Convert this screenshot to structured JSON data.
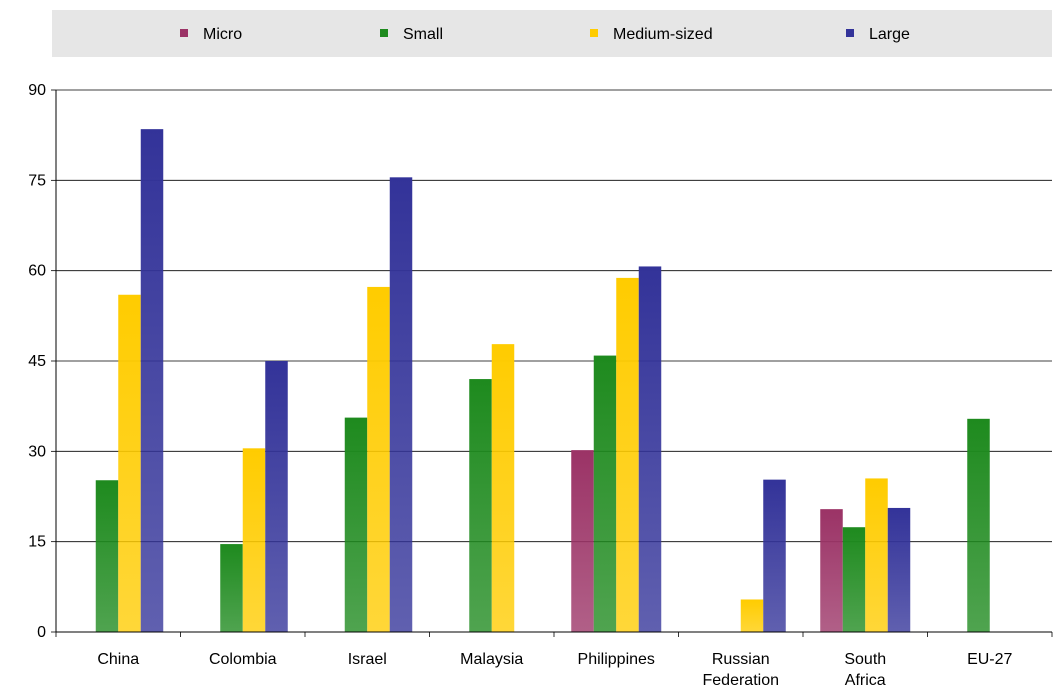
{
  "chart_data": {
    "type": "bar",
    "categories": [
      [
        "China"
      ],
      [
        "Colombia"
      ],
      [
        "Israel"
      ],
      [
        "Malaysia"
      ],
      [
        "Philippines"
      ],
      [
        "Russian",
        "Federation"
      ],
      [
        "South",
        "Africa"
      ],
      [
        "EU-27"
      ]
    ],
    "series": [
      {
        "name": "Micro",
        "color": "#9b3366",
        "values": [
          null,
          null,
          null,
          null,
          30.2,
          null,
          20.4,
          null
        ]
      },
      {
        "name": "Small",
        "color": "#1e8a1e",
        "values": [
          25.2,
          14.6,
          35.6,
          42.0,
          45.9,
          null,
          17.4,
          35.4
        ]
      },
      {
        "name": "Medium-sized",
        "color": "#ffcc00",
        "values": [
          56.0,
          30.5,
          57.3,
          47.8,
          58.8,
          5.4,
          25.5,
          null
        ]
      },
      {
        "name": "Large",
        "color": "#333399",
        "values": [
          83.5,
          45.0,
          75.5,
          null,
          60.7,
          25.3,
          20.6,
          null
        ]
      }
    ],
    "yticks": [
      "0",
      "15",
      "30",
      "45",
      "60",
      "75",
      "90"
    ],
    "ylim": [
      0,
      90
    ],
    "title": "",
    "xlabel": "",
    "ylabel": "",
    "grid": true,
    "legend_position": "top"
  }
}
